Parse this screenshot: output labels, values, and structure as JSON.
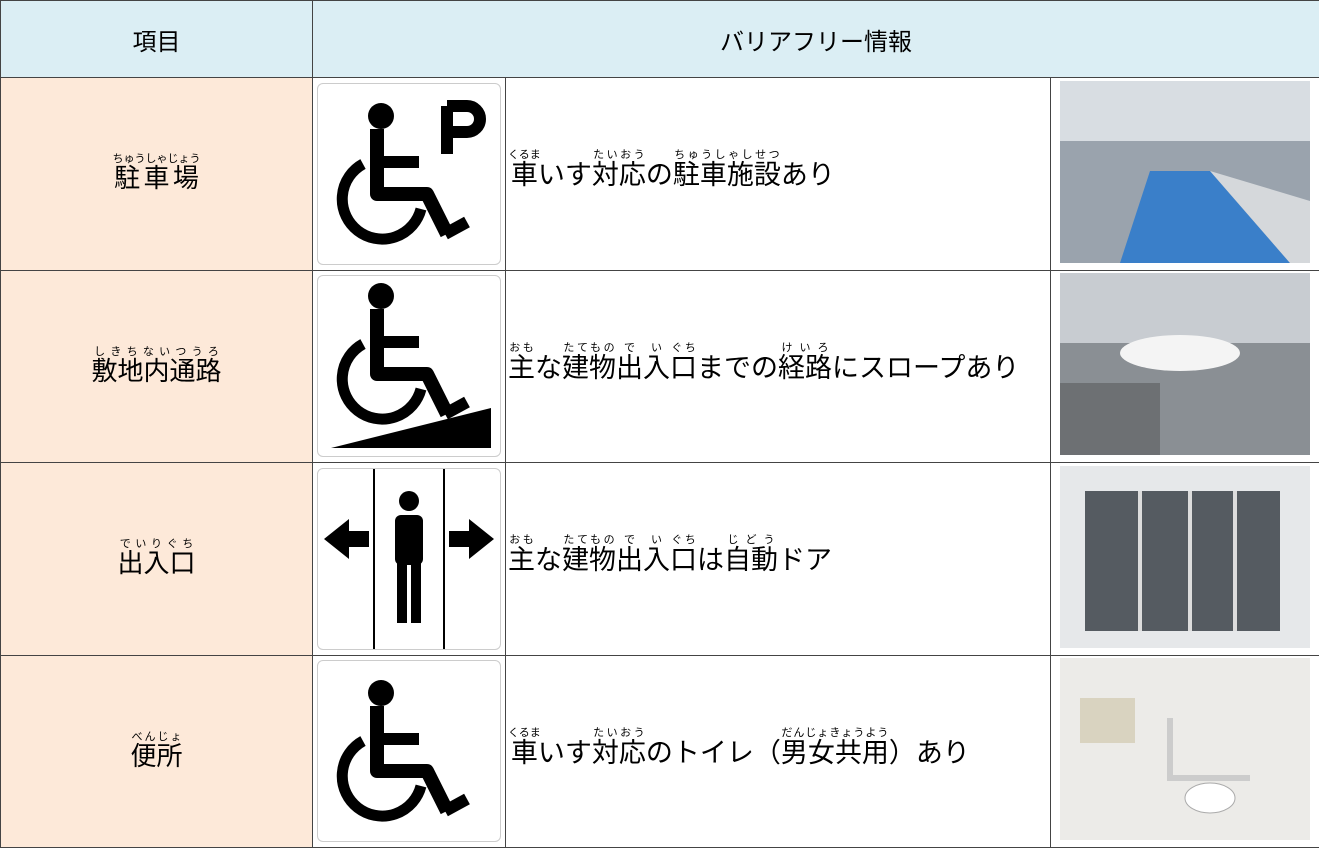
{
  "header": {
    "item": "項目",
    "info": "バリアフリー情報"
  },
  "rows": [
    {
      "item": {
        "text": "駐車場",
        "ruby": "ちゅうしゃじょう"
      },
      "description": [
        {
          "text": "車",
          "ruby": "くるま"
        },
        {
          "text": "いす"
        },
        {
          "text": "対応",
          "ruby": "たいおう"
        },
        {
          "text": "の"
        },
        {
          "text": "駐車施設",
          "ruby": "ちゅうしゃしせつ"
        },
        {
          "text": "あり"
        }
      ]
    },
    {
      "item": {
        "text": "敷地内通路",
        "ruby": "しきちないつうろ"
      },
      "description": [
        {
          "text": "主",
          "ruby": "おも"
        },
        {
          "text": "な"
        },
        {
          "text": "建物",
          "ruby": "たてもの"
        },
        {
          "text": "出",
          "ruby": "で"
        },
        {
          "text": "入",
          "ruby": "い"
        },
        {
          "text": "口",
          "ruby": "ぐち"
        },
        {
          "text": "までの"
        },
        {
          "text": "経路",
          "ruby": "けいろ"
        },
        {
          "text": "にスロープあり"
        }
      ]
    },
    {
      "item": {
        "text": "出入口",
        "ruby": "でいりぐち"
      },
      "description": [
        {
          "text": "主",
          "ruby": "おも"
        },
        {
          "text": "な"
        },
        {
          "text": "建物",
          "ruby": "たてもの"
        },
        {
          "text": "出",
          "ruby": "で"
        },
        {
          "text": "入",
          "ruby": "い"
        },
        {
          "text": "口",
          "ruby": "ぐち"
        },
        {
          "text": "は"
        },
        {
          "text": "自動",
          "ruby": "じどう"
        },
        {
          "text": "ドア"
        }
      ]
    },
    {
      "item": {
        "text": "便所",
        "ruby": "べんじょ"
      },
      "description": [
        {
          "text": "車",
          "ruby": "くるま"
        },
        {
          "text": "いす"
        },
        {
          "text": "対応",
          "ruby": "たいおう"
        },
        {
          "text": "のトイレ（"
        },
        {
          "text": "男女共用",
          "ruby": "だんじょきょうよう"
        },
        {
          "text": "）あり"
        }
      ]
    }
  ]
}
